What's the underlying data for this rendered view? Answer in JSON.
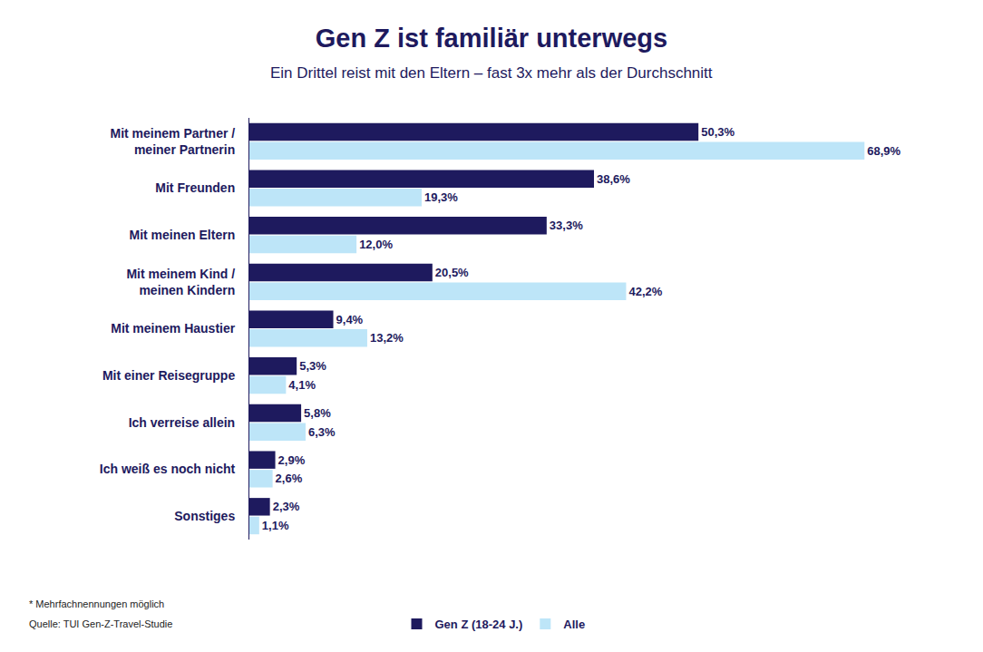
{
  "chart_data": {
    "type": "bar",
    "orientation": "horizontal",
    "title": "Gen Z ist familiär unterwegs",
    "subtitle": "Ein Drittel reist mit den Eltern – fast 3x mehr als der Durchschnitt",
    "categories": [
      "Mit meinem Partner / meiner Partnerin",
      "Mit Freunden",
      "Mit meinen Eltern",
      "Mit meinem Kind / meinen Kindern",
      "Mit meinem Haustier",
      "Mit einer Reisegruppe",
      "Ich verreise allein",
      "Ich weiß es noch nicht",
      "Sonstiges"
    ],
    "series": [
      {
        "name": "Gen Z (18-24 J.)",
        "color": "#1e1a5e",
        "values": [
          50.3,
          38.6,
          33.3,
          20.5,
          9.4,
          5.3,
          5.8,
          2.9,
          2.3
        ],
        "value_labels": [
          "50,3%",
          "38,6%",
          "33,3%",
          "20,5%",
          "9,4%",
          "5,3%",
          "5,8%",
          "2,9%",
          "2,3%"
        ]
      },
      {
        "name": "Alle",
        "color": "#bde5f8",
        "values": [
          68.9,
          19.3,
          12.0,
          42.2,
          13.2,
          4.1,
          6.3,
          2.6,
          1.1
        ],
        "value_labels": [
          "68,9%",
          "19,3%",
          "12,0%",
          "42,2%",
          "13,2%",
          "4,1%",
          "6,3%",
          "2,6%",
          "1,1%"
        ]
      }
    ],
    "data_labels": true,
    "tick_labels": "y",
    "grid": false,
    "legend": "bottom",
    "footnote": "* Mehrfachnennungen möglich",
    "source": "Quelle: TUI Gen-Z-Travel-Studie"
  }
}
